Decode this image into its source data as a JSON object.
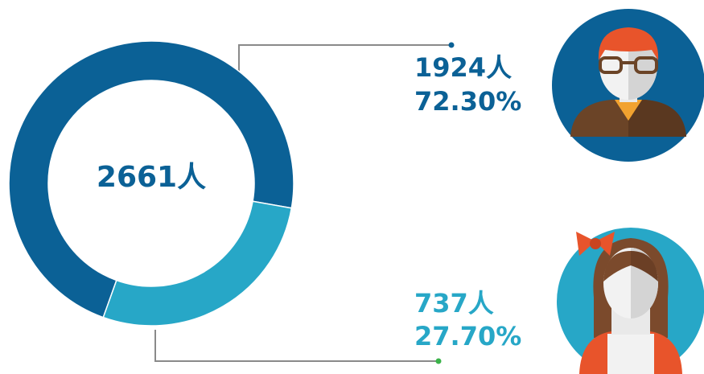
{
  "chart_data": {
    "type": "donut",
    "total": 2661,
    "total_label": "2661人",
    "values": [
      1924,
      737
    ],
    "value_labels": [
      "1924人",
      "737人"
    ],
    "shares": [
      72.3,
      27.7
    ],
    "share_labels": [
      "72.30%",
      "27.70%"
    ],
    "colors": [
      "#0b6196",
      "#27a7c7"
    ]
  }
}
